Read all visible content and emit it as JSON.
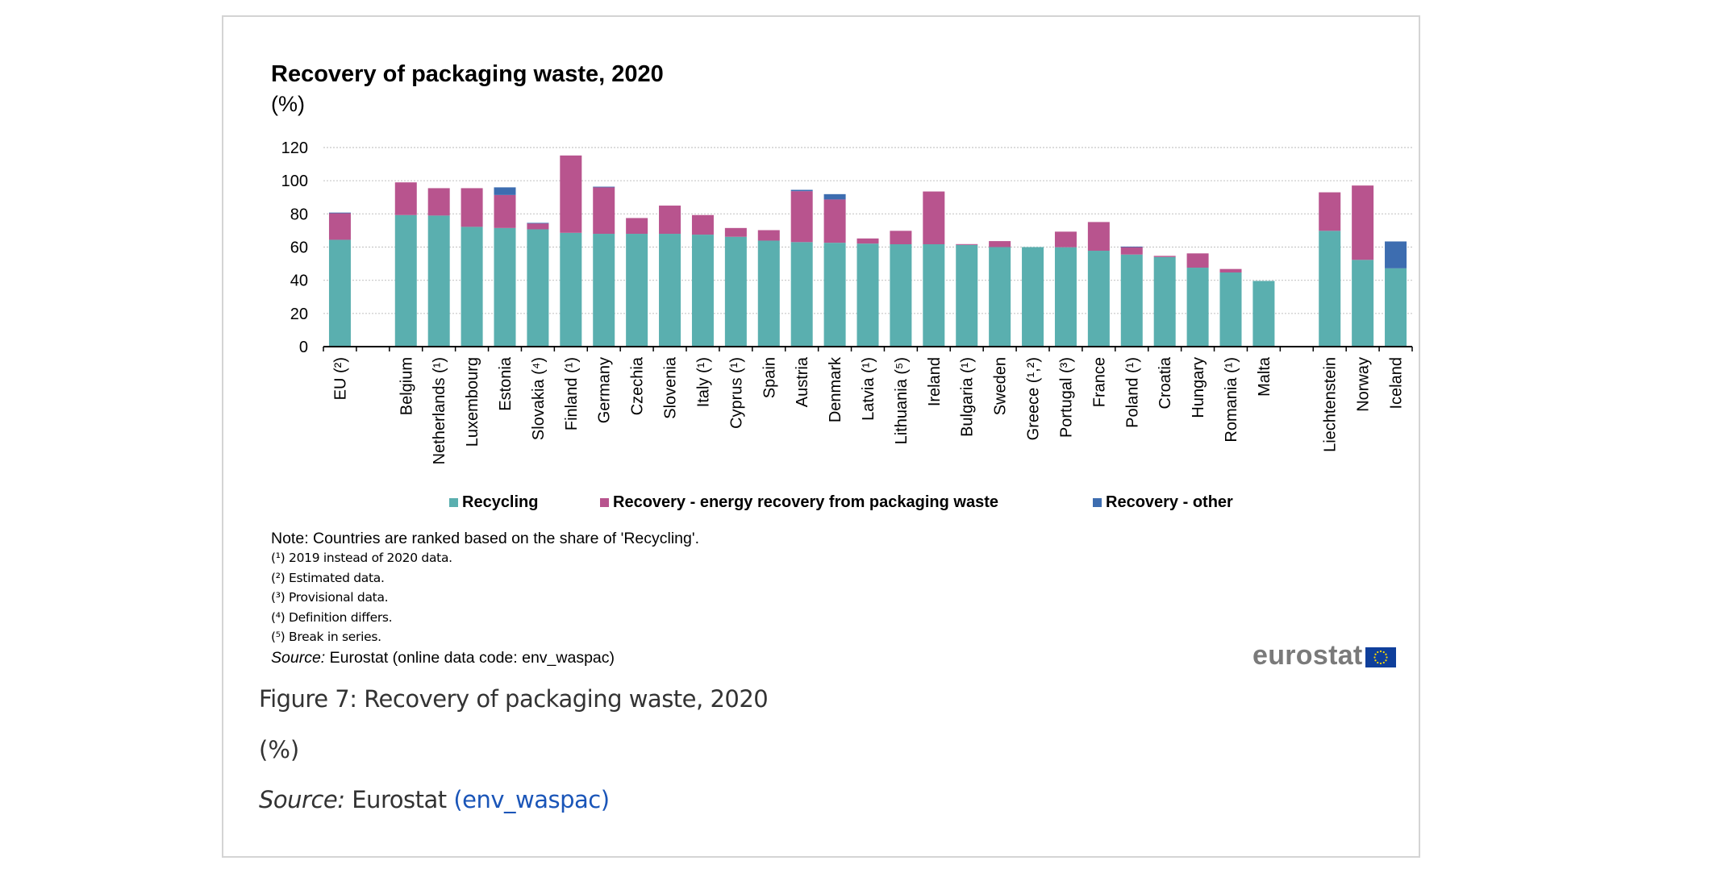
{
  "figure": {
    "caption_title": "Figure 7: Recovery of packaging waste, 2020",
    "caption_unit": "(%)",
    "caption_source_label": "Source:",
    "caption_source_text": "Eurostat",
    "caption_source_link": "(env_waspac)",
    "link_color": "#1a55b8"
  },
  "notes": {
    "main": "Note: Countries are ranked based on the share of 'Recycling'.",
    "footnotes": [
      "(¹) 2019 instead of 2020 data.",
      "(²) Estimated data.",
      "(³) Provisional data.",
      "(⁴) Definition differs.",
      "(⁵) Break in series."
    ],
    "source_label": "Source:",
    "source_text": "Eurostat (online data code: env_waspac)"
  },
  "logo": {
    "text": "eurostat",
    "flag_icon": "eu-flag-icon"
  },
  "chart_data": {
    "type": "bar",
    "stacked": true,
    "title": "Recovery of packaging waste, 2020",
    "subtitle": "(%)",
    "xlabel": "",
    "ylabel": "",
    "ylim": [
      0,
      120
    ],
    "yticks": [
      0,
      20,
      40,
      60,
      80,
      100,
      120
    ],
    "grid": true,
    "legend_position": "bottom",
    "categories": [
      "EU (²)",
      "",
      "Belgium",
      "Netherlands (¹)",
      "Luxembourg",
      "Estonia",
      "Slovakia (⁴)",
      "Finland (¹)",
      "Germany",
      "Czechia",
      "Slovenia",
      "Italy (¹)",
      "Cyprus (¹)",
      "Spain",
      "Austria",
      "Denmark",
      "Latvia (¹)",
      "Lithuania (⁵)",
      "Ireland",
      "Bulgaria (¹)",
      "Sweden",
      "Greece (¹,²)",
      "Portugal (³)",
      "France",
      "Poland (¹)",
      "Croatia",
      "Hungary",
      "Romania (¹)",
      "Malta",
      "",
      "Liechtenstein",
      "Norway",
      "Iceland"
    ],
    "series": [
      {
        "name": "Recycling",
        "color": "#5aafaf",
        "values": [
          64.4,
          null,
          79.3,
          79.0,
          72.2,
          71.5,
          70.7,
          68.6,
          68.0,
          68.0,
          68.0,
          67.5,
          66.2,
          63.9,
          63.0,
          62.6,
          62.1,
          61.7,
          61.7,
          61.3,
          60.0,
          60.0,
          59.9,
          57.8,
          55.5,
          54.0,
          47.6,
          44.7,
          39.6,
          null,
          69.8,
          52.3,
          47.2
        ]
      },
      {
        "name": "Recovery - energy recovery from packaging waste",
        "color": "#b8548e",
        "values": [
          16.0,
          null,
          19.7,
          16.5,
          23.3,
          19.9,
          3.6,
          46.6,
          28.1,
          9.5,
          17.0,
          11.8,
          5.3,
          6.3,
          30.7,
          26.1,
          3.1,
          8.1,
          31.8,
          0.5,
          3.6,
          0.0,
          9.4,
          17.3,
          4.5,
          0.7,
          8.6,
          2.1,
          0.0,
          null,
          23.2,
          44.8,
          0.0
        ]
      },
      {
        "name": "Recovery - other",
        "color": "#3d6db0",
        "values": [
          0.4,
          null,
          0.0,
          0.0,
          0.0,
          4.6,
          0.3,
          0.0,
          0.3,
          0.0,
          0.0,
          0.0,
          0.0,
          0.0,
          0.8,
          3.2,
          0.0,
          0.0,
          0.0,
          0.0,
          0.0,
          0.0,
          0.0,
          0.0,
          0.3,
          0.0,
          0.0,
          0.0,
          0.0,
          null,
          0.0,
          0.0,
          16.2
        ]
      }
    ]
  }
}
